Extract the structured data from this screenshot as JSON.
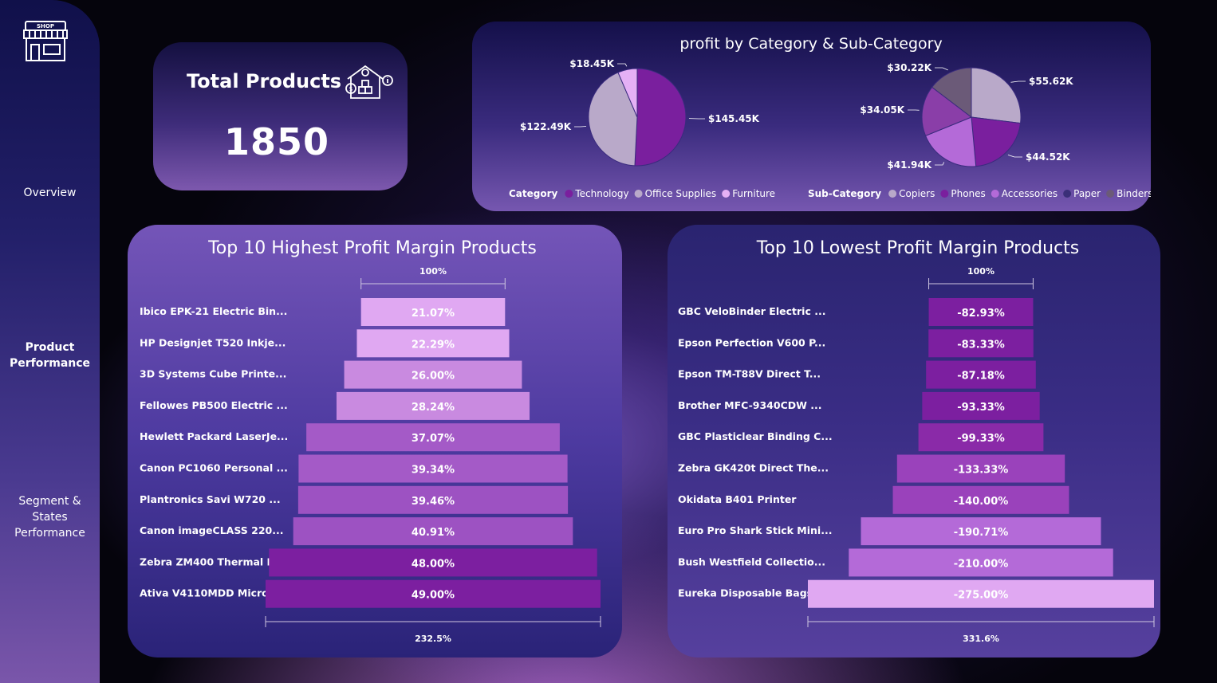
{
  "nav": {
    "overview": "Overview",
    "product_performance": [
      "Product",
      "Performance"
    ],
    "segment": [
      "Segment &",
      "States",
      "Performance"
    ],
    "shop_sign": "SHOP"
  },
  "kpi": {
    "title": "Total Products",
    "value": "1850"
  },
  "colors": {
    "dark": "#7a1f9e",
    "mid": "#a05ac6",
    "light": "#e5b0f5",
    "grey": "#b9a9c9",
    "darkgrey": "#6b5a78"
  },
  "chart_data": [
    {
      "type": "pie",
      "title": "profit by Category & Sub-Category",
      "legend_title": "Category",
      "labels": [
        "Technology",
        "Office Supplies",
        "Furniture"
      ],
      "values": [
        145.45,
        122.49,
        18.45
      ],
      "value_labels": [
        "$145.45K",
        "$122.49K",
        "$18.45K"
      ],
      "colors": [
        "#7a1f9e",
        "#b9a9c9",
        "#e5b0f5"
      ],
      "legend_placement": "bottom"
    },
    {
      "type": "pie",
      "legend_title": "Sub-Category",
      "labels": [
        "Copiers",
        "Phones",
        "Accessories",
        "Paper",
        "Binders"
      ],
      "values": [
        55.62,
        44.52,
        41.94,
        34.05,
        30.22
      ],
      "value_labels": [
        "$55.62K",
        "$44.52K",
        "$41.94K",
        "$34.05K",
        "$30.22K"
      ],
      "colors": [
        "#b9a9c9",
        "#7a1f9e",
        "#b46ad8",
        "#8a3ea8",
        "#6b5a78"
      ],
      "legend_colors": [
        "#b9a9c9",
        "#7a1f9e",
        "#b46ad8",
        "#3a2f78",
        "#6b5a78"
      ],
      "legend_placement": "bottom"
    },
    {
      "type": "bar",
      "orientation": "funnel",
      "title": "Top 10 Highest Profit Margin Products",
      "categories": [
        "Ibico EPK-21 Electric Bin...",
        "HP Designjet T520 Inkje...",
        "3D Systems Cube Printe...",
        "Fellowes PB500 Electric ...",
        "Hewlett Packard LaserJe...",
        "Canon PC1060 Personal ...",
        "Plantronics Savi W720 ...",
        "Canon imageCLASS 220...",
        "Zebra ZM400 Thermal L...",
        "Ativa V4110MDD Micro..."
      ],
      "values": [
        21.07,
        22.29,
        26.0,
        28.24,
        37.07,
        39.34,
        39.46,
        40.91,
        48.0,
        49.0
      ],
      "value_labels": [
        "21.07%",
        "22.29%",
        "26.00%",
        "28.24%",
        "37.07%",
        "39.34%",
        "39.46%",
        "40.91%",
        "48.00%",
        "49.00%"
      ],
      "colors": [
        "#e0a8f2",
        "#e0a8f2",
        "#c98ae0",
        "#c98ae0",
        "#a45ac7",
        "#a45ac7",
        "#9d52c2",
        "#9d52c2",
        "#7c1fa0",
        "#7c1fa0"
      ],
      "top_scale_label": "100%",
      "bottom_scale_label": "232.5%"
    },
    {
      "type": "bar",
      "orientation": "funnel",
      "title": "Top 10 Lowest Profit Margin Products",
      "categories": [
        "GBC VeloBinder Electric ...",
        "Epson Perfection V600 P...",
        "Epson TM-T88V Direct T...",
        "Brother MFC-9340CDW ...",
        "GBC Plasticlear Binding C...",
        "Zebra GK420t Direct The...",
        "Okidata B401 Printer",
        "Euro Pro Shark Stick Mini...",
        "Bush Westfield Collectio...",
        "Eureka Disposable Bags f..."
      ],
      "values": [
        -82.93,
        -83.33,
        -87.18,
        -93.33,
        -99.33,
        -133.33,
        -140.0,
        -190.71,
        -210.0,
        -275.0
      ],
      "value_labels": [
        "-82.93%",
        "-83.33%",
        "-87.18%",
        "-93.33%",
        "-99.33%",
        "-133.33%",
        "-140.00%",
        "-190.71%",
        "-210.00%",
        "-275.00%"
      ],
      "colors": [
        "#7c1fa0",
        "#7c1fa0",
        "#7c1fa0",
        "#7c1fa0",
        "#8a2aa8",
        "#9a42bb",
        "#9a42bb",
        "#b46ad8",
        "#b46ad8",
        "#e0a8f2"
      ],
      "top_scale_label": "100%",
      "bottom_scale_label": "331.6%"
    }
  ]
}
